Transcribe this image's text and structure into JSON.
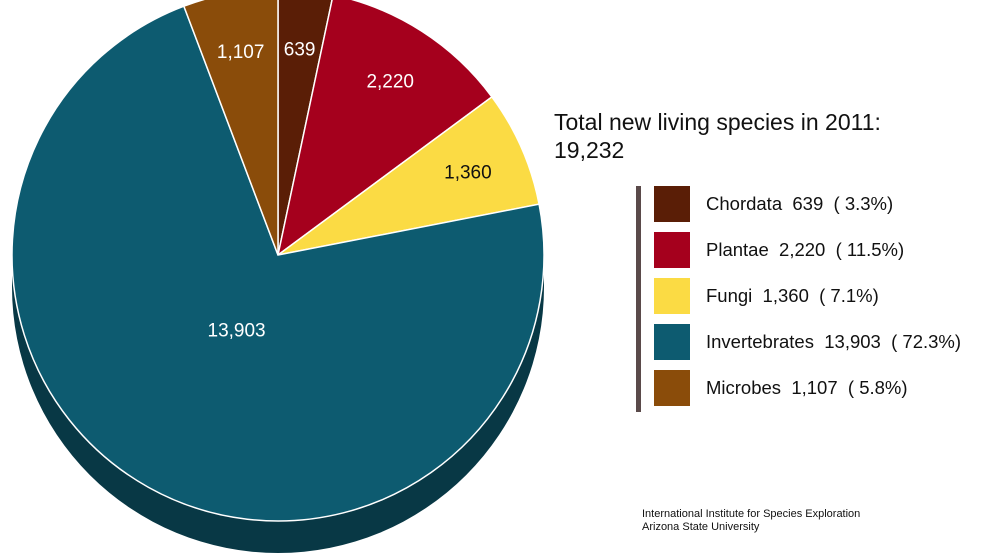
{
  "chart_data": {
    "type": "pie",
    "title": "Total new living species in 2011:",
    "total_label": "19,232",
    "slices": [
      {
        "name": "Chordata",
        "value": 639,
        "value_label": "639",
        "percent_label": "( 3.3%)",
        "color": "#5a1e06",
        "label_dark": false
      },
      {
        "name": "Plantae",
        "value": 2220,
        "value_label": "2,220",
        "percent_label": "( 11.5%)",
        "color": "#a5001d",
        "label_dark": false
      },
      {
        "name": "Fungi",
        "value": 1360,
        "value_label": "1,360",
        "percent_label": "( 7.1%)",
        "color": "#fbdb44",
        "label_dark": true
      },
      {
        "name": "Invertebrates",
        "value": 13903,
        "value_label": "13,903",
        "percent_label": "( 72.3%)",
        "color": "#0d5b70",
        "label_dark": false
      },
      {
        "name": "Microbes",
        "value": 1107,
        "value_label": "1,107",
        "percent_label": "( 5.8%)",
        "color": "#8a4c0a",
        "label_dark": false
      }
    ],
    "legend_placement": "right"
  },
  "source": {
    "line1": "International Institute for Species Exploration",
    "line2": "Arizona State University"
  }
}
